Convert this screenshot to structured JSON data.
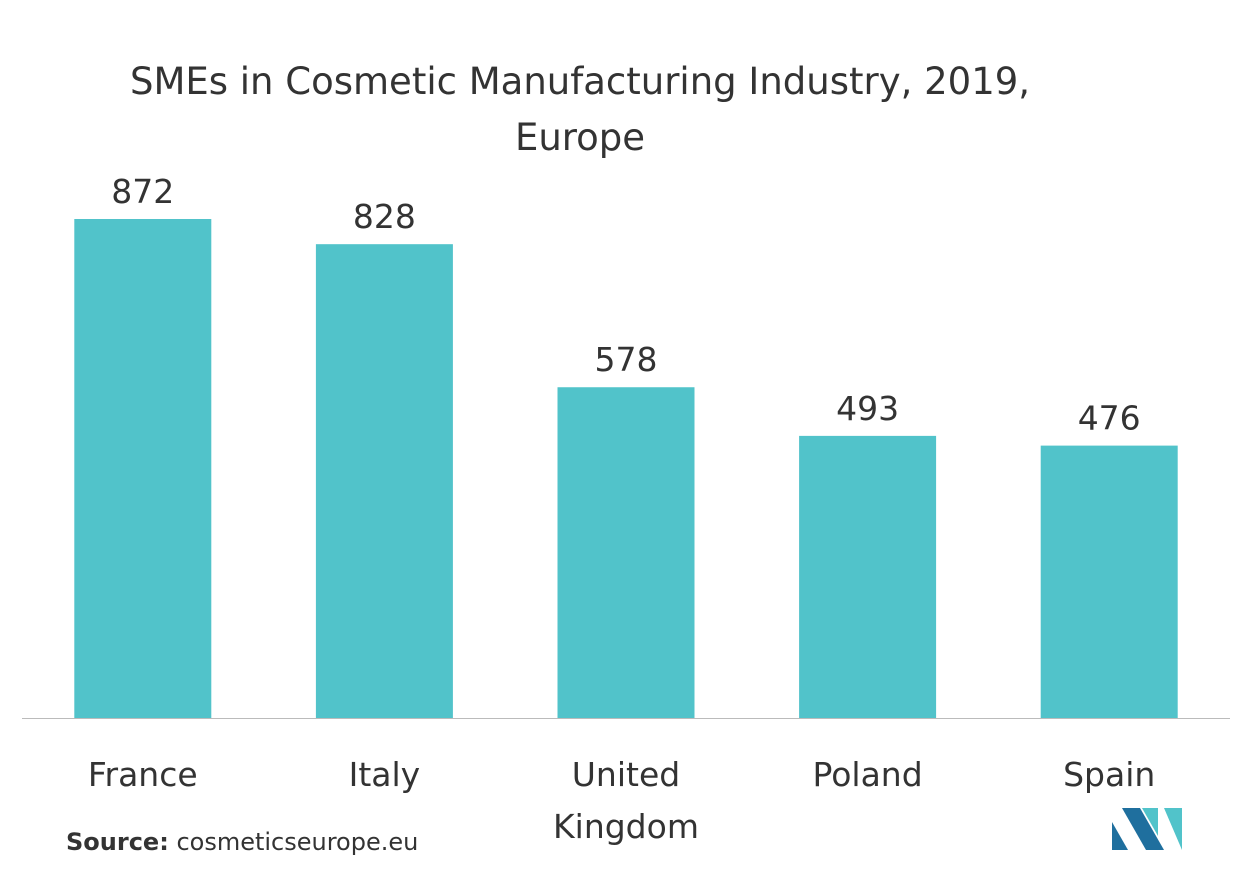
{
  "chart_data": {
    "type": "bar",
    "title_line1": "SMEs in Cosmetic Manufacturing Industry, 2019,",
    "title_line2": "Europe",
    "categories": [
      "France",
      "Italy",
      "United Kingdom",
      "Poland",
      "Spain"
    ],
    "category_lines": [
      [
        "France"
      ],
      [
        "Italy"
      ],
      [
        "United",
        "Kingdom"
      ],
      [
        "Poland"
      ],
      [
        "Spain"
      ]
    ],
    "values": [
      872,
      828,
      578,
      493,
      476
    ],
    "ylim": [
      0,
      872
    ],
    "grid": false,
    "bar_color": "#51C3CA",
    "axis_color": "#BBBBBB"
  },
  "source": {
    "label": "Source:",
    "text": "cosmeticseurope.eu"
  },
  "logo": {
    "icon": "mordor-intelligence-logo-icon",
    "colors": [
      "#1F6F9E",
      "#51C3CA"
    ]
  }
}
